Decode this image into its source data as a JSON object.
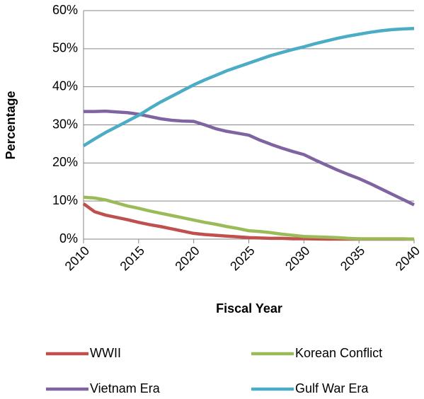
{
  "chart_data": {
    "type": "line",
    "y_label": "Percentage",
    "x_label": "Fiscal Year",
    "x": [
      2010,
      2011,
      2012,
      2013,
      2014,
      2015,
      2016,
      2017,
      2018,
      2019,
      2020,
      2021,
      2022,
      2023,
      2024,
      2025,
      2026,
      2027,
      2028,
      2029,
      2030,
      2031,
      2032,
      2033,
      2034,
      2035,
      2036,
      2037,
      2038,
      2039,
      2040
    ],
    "series": [
      {
        "name": "WWII",
        "color": "#c0504d",
        "values": [
          9.3,
          7.2,
          6.3,
          5.7,
          5.1,
          4.4,
          3.8,
          3.3,
          2.7,
          2.1,
          1.5,
          1.2,
          1.0,
          0.8,
          0.6,
          0.4,
          0.3,
          0.2,
          0.2,
          0.1,
          0.1,
          0.05,
          0,
          0,
          0,
          0,
          0,
          0,
          0,
          0,
          0
        ]
      },
      {
        "name": "Korean Conflict",
        "color": "#9bbb59",
        "values": [
          11.0,
          10.8,
          10.3,
          9.5,
          8.7,
          8.1,
          7.4,
          6.8,
          6.2,
          5.6,
          5.0,
          4.4,
          3.9,
          3.3,
          2.8,
          2.2,
          2.0,
          1.7,
          1.3,
          1.0,
          0.7,
          0.6,
          0.5,
          0.4,
          0.2,
          0.1,
          0.1,
          0.1,
          0.1,
          0.1,
          0.0
        ]
      },
      {
        "name": "Vietnam Era",
        "color": "#8064a2",
        "values": [
          33.5,
          33.5,
          33.6,
          33.4,
          33.2,
          32.8,
          32.2,
          31.6,
          31.2,
          31.0,
          30.9,
          30.0,
          29.0,
          28.3,
          27.8,
          27.3,
          26.0,
          24.9,
          23.9,
          23.0,
          22.2,
          20.8,
          19.5,
          18.2,
          17.0,
          15.9,
          14.6,
          13.2,
          11.8,
          10.4,
          9.0
        ]
      },
      {
        "name": "Gulf War Era",
        "color": "#4bacc6",
        "values": [
          24.5,
          26.3,
          28.0,
          29.5,
          31.0,
          32.5,
          34.3,
          36.0,
          37.5,
          39.0,
          40.5,
          41.8,
          43.0,
          44.2,
          45.2,
          46.2,
          47.2,
          48.2,
          49.0,
          49.8,
          50.5,
          51.3,
          52.0,
          52.7,
          53.3,
          53.8,
          54.3,
          54.7,
          55.0,
          55.2,
          55.3
        ]
      }
    ],
    "xlim": [
      2010,
      2040
    ],
    "xticks": [
      2010,
      2015,
      2020,
      2025,
      2030,
      2035,
      2040
    ],
    "ylim": [
      0,
      60
    ],
    "yticks": [
      {
        "value": 0,
        "label": "0%"
      },
      {
        "value": 10,
        "label": "10%"
      },
      {
        "value": 20,
        "label": "20%"
      },
      {
        "value": 30,
        "label": "30%"
      },
      {
        "value": 40,
        "label": "40%"
      },
      {
        "value": 50,
        "label": "50%"
      },
      {
        "value": 60,
        "label": "60%"
      }
    ],
    "grid": true,
    "legend": "bottom"
  }
}
